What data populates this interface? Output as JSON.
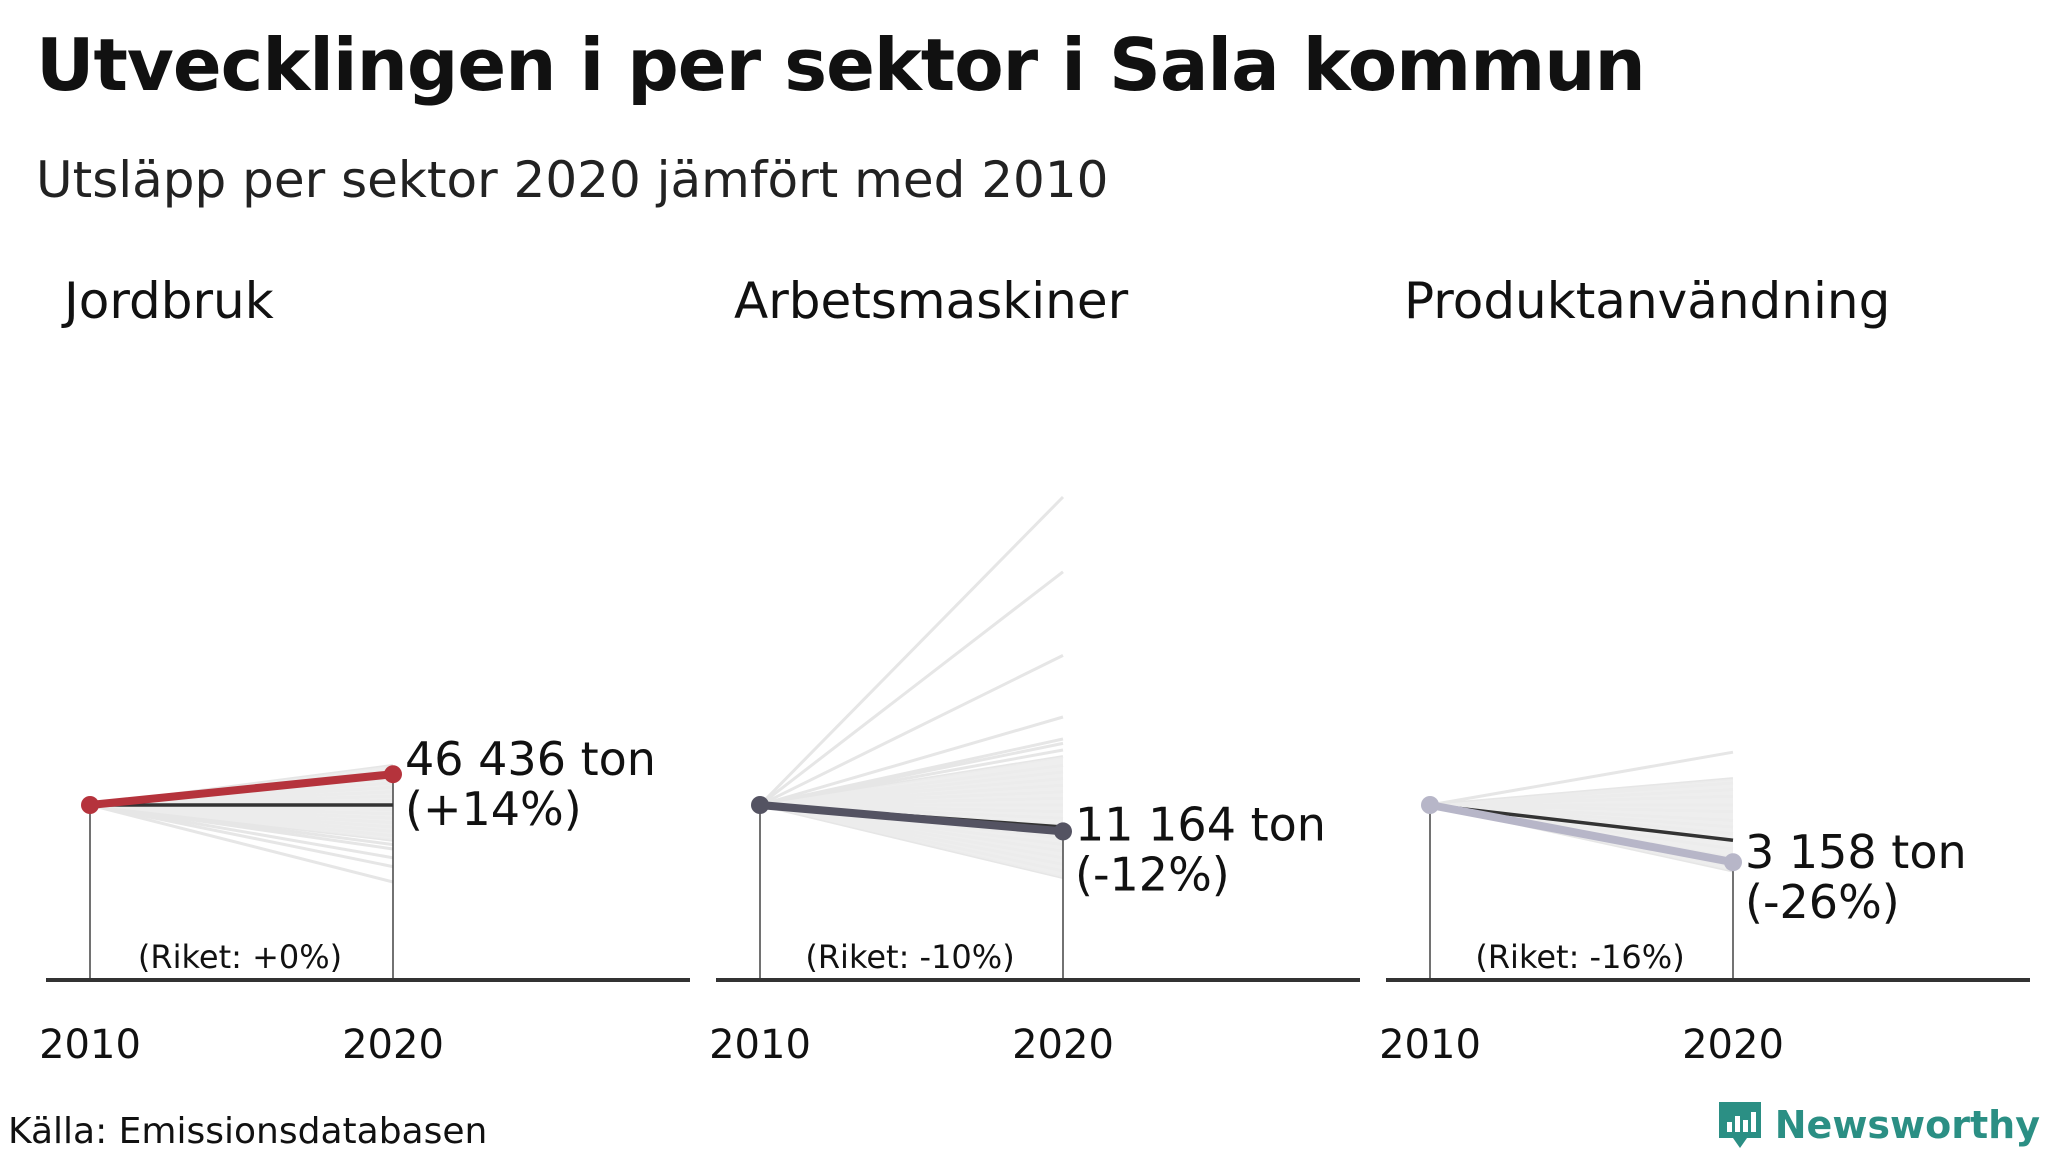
{
  "title": "Utvecklingen i per sektor i Sala kommun",
  "subtitle": "Utsläpp per sektor 2020 jämfört med 2010",
  "source": "Källa: Emissionsdatabasen",
  "brand": {
    "name": "Newsworthy",
    "color": "#2b8f84",
    "icon": "newsworthy-logo-icon"
  },
  "colors": {
    "background_lines": "#e6e6e6",
    "band": "#ececec",
    "national": "#333333",
    "axis": "#333333"
  },
  "chart_data": [
    {
      "type": "line",
      "title": "Jordbruk",
      "x": [
        "2010",
        "2020"
      ],
      "series": [
        {
          "values": [
            40733,
            46436
          ],
          "color": "#b5333c"
        }
      ],
      "value_label": "46 436 ton",
      "change_label": "(+14%)",
      "riket_label": "(Riket: +0%)",
      "riket_change_pct": 0,
      "comparison_change_pct": [
        18,
        16,
        14,
        12,
        10,
        8,
        6,
        4,
        2,
        -2,
        -4,
        -6,
        -8,
        -10,
        -12,
        -14,
        -16,
        -18,
        -20,
        -24,
        -28,
        -35
      ],
      "band_pct": [
        -16,
        18
      ],
      "index_range": [
        -50,
        150
      ]
    },
    {
      "type": "line",
      "title": "Arbetsmaskiner",
      "x": [
        "2010",
        "2020"
      ],
      "series": [
        {
          "values": [
            12686,
            11164
          ],
          "color": "#545362"
        }
      ],
      "value_label": "11 164 ton",
      "change_label": "(-12%)",
      "riket_label": "(Riket: -10%)",
      "riket_change_pct": -10,
      "comparison_change_pct": [
        140,
        106,
        68,
        40,
        30,
        28,
        25,
        22,
        18,
        15,
        12,
        9,
        6,
        3,
        0,
        -3,
        -6,
        -9,
        -15,
        -18,
        -21,
        -24,
        -27,
        -30,
        -33
      ],
      "band_pct": [
        -33,
        22
      ],
      "index_range": [
        -50,
        150
      ]
    },
    {
      "type": "line",
      "title": "Produktanvändning",
      "x": [
        "2010",
        "2020"
      ],
      "series": [
        {
          "values": [
            4268,
            3158
          ],
          "color": "#b7b6c8"
        }
      ],
      "value_label": "3 158 ton",
      "change_label": "(-26%)",
      "riket_label": "(Riket: -16%)",
      "riket_change_pct": -16,
      "comparison_change_pct": [
        24,
        12,
        10,
        7,
        4,
        0,
        -3,
        -7,
        -10,
        -13,
        -16,
        -20,
        -24,
        -28,
        -30
      ],
      "band_pct": [
        -30,
        12
      ],
      "index_range": [
        -50,
        150
      ]
    }
  ]
}
